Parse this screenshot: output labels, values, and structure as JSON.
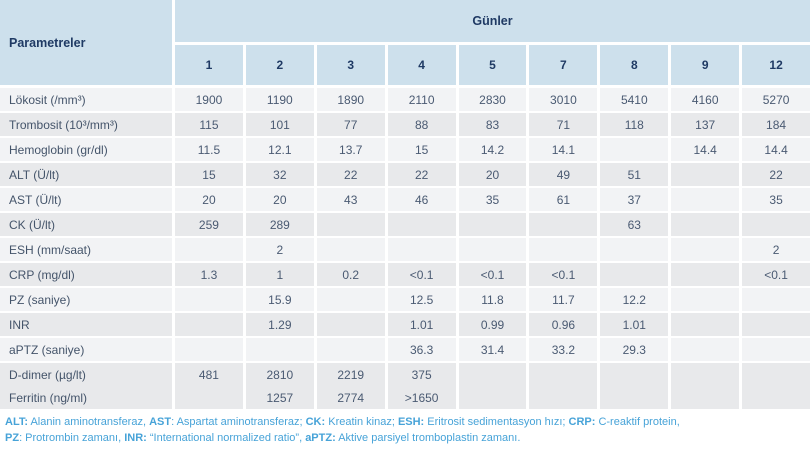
{
  "table": {
    "param_header": "Parametreler",
    "group_header": "Günler",
    "day_columns": [
      "1",
      "2",
      "3",
      "4",
      "5",
      "7",
      "8",
      "9",
      "12"
    ],
    "rows": [
      {
        "label": "Lökosit (/mm³)",
        "values": [
          "1900",
          "1190",
          "1890",
          "2110",
          "2830",
          "3010",
          "5410",
          "4160",
          "5270"
        ]
      },
      {
        "label": "Trombosit (10³/mm³)",
        "values": [
          "115",
          "101",
          "77",
          "88",
          "83",
          "71",
          "118",
          "137",
          "184"
        ]
      },
      {
        "label": "Hemoglobin (gr/dl)",
        "values": [
          "11.5",
          "12.1",
          "13.7",
          "15",
          "14.2",
          "14.1",
          "",
          "14.4",
          "14.4"
        ]
      },
      {
        "label": "ALT (Ü/lt)",
        "values": [
          "15",
          "32",
          "22",
          "22",
          "20",
          "49",
          "51",
          "",
          "22"
        ]
      },
      {
        "label": "AST (Ü/lt)",
        "values": [
          "20",
          "20",
          "43",
          "46",
          "35",
          "61",
          "37",
          "",
          "35"
        ]
      },
      {
        "label": "CK (Ü/lt)",
        "values": [
          "259",
          "289",
          "",
          "",
          "",
          "",
          "63",
          "",
          ""
        ]
      },
      {
        "label": "ESH (mm/saat)",
        "values": [
          "",
          "2",
          "",
          "",
          "",
          "",
          "",
          "",
          "2"
        ]
      },
      {
        "label": "CRP (mg/dl)",
        "values": [
          "1.3",
          "1",
          "0.2",
          "<0.1",
          "<0.1",
          "<0.1",
          "",
          "",
          "<0.1"
        ]
      },
      {
        "label": "PZ (saniye)",
        "values": [
          "",
          "15.9",
          "",
          "12.5",
          "11.8",
          "11.7",
          "12.2",
          "",
          ""
        ]
      },
      {
        "label": "INR",
        "values": [
          "",
          "1.29",
          "",
          "1.01",
          "0.99",
          "0.96",
          "1.01",
          "",
          ""
        ]
      },
      {
        "label": "aPTZ (saniye)",
        "values": [
          "",
          "",
          "",
          "36.3",
          "31.4",
          "33.2",
          "29.3",
          "",
          ""
        ]
      },
      {
        "label": "D-dimer (µg/lt)",
        "values": [
          "481",
          "2810",
          "2219",
          "375",
          "",
          "",
          "",
          "",
          ""
        ]
      },
      {
        "label": "Ferritin (ng/ml)",
        "values": [
          "",
          "1257",
          "2774",
          ">1650",
          "",
          "",
          "",
          "",
          ""
        ],
        "merge_with_previous": true
      }
    ]
  },
  "footnote": {
    "lines": [
      [
        {
          "text": "ALT:",
          "bold": true
        },
        {
          "text": " Alanin aminotransferaz, ",
          "bold": false
        },
        {
          "text": "AST",
          "bold": true
        },
        {
          "text": ": Aspartat aminotransferaz; ",
          "bold": false
        },
        {
          "text": "CK:",
          "bold": true
        },
        {
          "text": " Kreatin kinaz; ",
          "bold": false
        },
        {
          "text": "ESH:",
          "bold": true
        },
        {
          "text": " Eritrosit sedimentasyon hızı; ",
          "bold": false
        },
        {
          "text": "CRP:",
          "bold": true
        },
        {
          "text": " C-reaktif protein,",
          "bold": false
        }
      ],
      [
        {
          "text": "PZ",
          "bold": true
        },
        {
          "text": ": Protrombin zamanı, ",
          "bold": false
        },
        {
          "text": "INR:",
          "bold": true
        },
        {
          "text": " “International normalized ratio”, ",
          "bold": false
        },
        {
          "text": "aPTZ:",
          "bold": true
        },
        {
          "text": " Aktive parsiyel tromboplastin zamanı.",
          "bold": false
        }
      ]
    ]
  },
  "colors": {
    "header_bg": "#cde0ec",
    "header_text": "#1f3a64",
    "row_light": "#f2f3f5",
    "row_dark": "#e8e9eb",
    "body_text": "#44546a",
    "footnote_text": "#47a3d8"
  }
}
